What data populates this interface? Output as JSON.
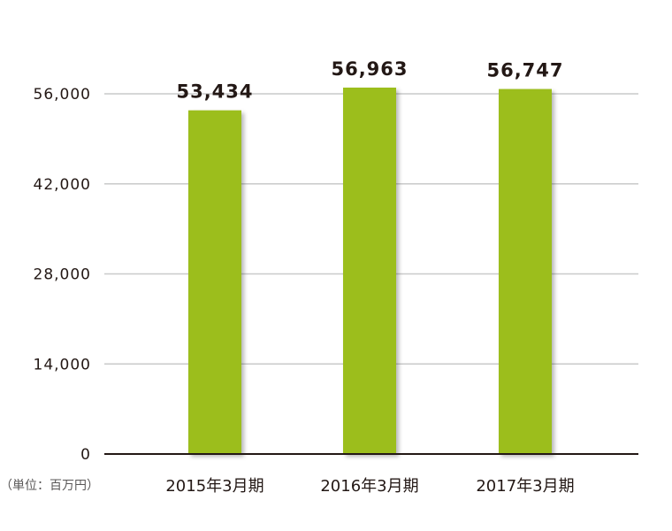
{
  "chart_data": {
    "type": "bar",
    "categories": [
      "2015年3月期",
      "2016年3月期",
      "2017年3月期"
    ],
    "values": [
      53434,
      56963,
      56747
    ],
    "value_labels": [
      "53,434",
      "56,963",
      "56,747"
    ],
    "y_ticks": [
      0,
      14000,
      28000,
      42000,
      56000
    ],
    "y_tick_labels": [
      "0",
      "14,000",
      "28,000",
      "42,000",
      "56,000"
    ],
    "ylim": [
      0,
      56000
    ],
    "unit_label": "（単位：百万円）",
    "grid": true,
    "colors": {
      "bar": "#9cbe1e",
      "grid": "#c9caca",
      "axis": "#231815",
      "text": "#231815"
    }
  }
}
